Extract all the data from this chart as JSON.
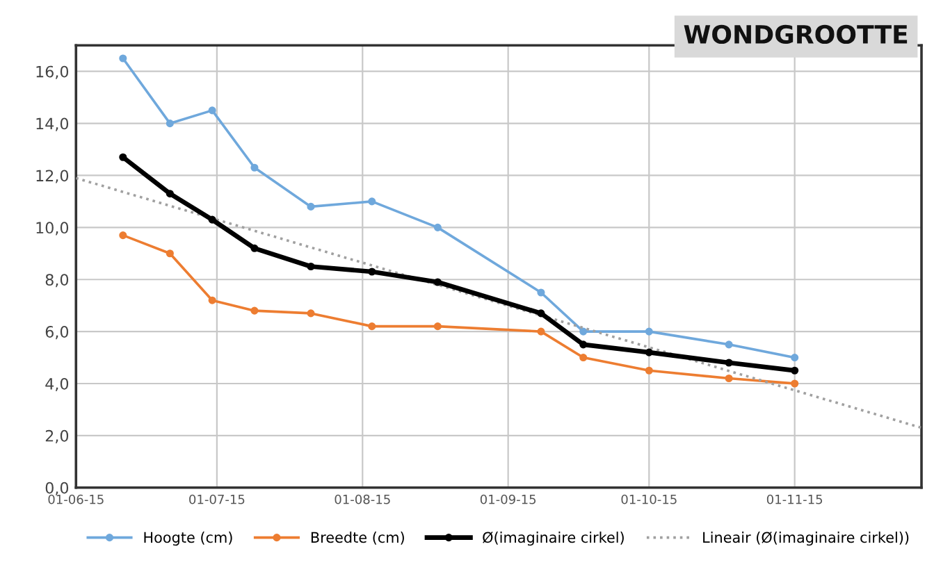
{
  "chart_data": {
    "type": "line",
    "title": "WONDGROOTTE",
    "xlim": [
      "2015-06-01",
      "2015-11-28"
    ],
    "xticks": [
      {
        "value": "2015-06-01",
        "label": "01-06-15"
      },
      {
        "value": "2015-07-01",
        "label": "01-07-15"
      },
      {
        "value": "2015-08-01",
        "label": "01-08-15"
      },
      {
        "value": "2015-09-01",
        "label": "01-09-15"
      },
      {
        "value": "2015-10-01",
        "label": "01-10-15"
      },
      {
        "value": "2015-11-01",
        "label": "01-11-15"
      }
    ],
    "ylim": [
      0,
      17
    ],
    "yticks": [
      {
        "value": 0,
        "label": "0,0"
      },
      {
        "value": 2,
        "label": "2,0"
      },
      {
        "value": 4,
        "label": "4,0"
      },
      {
        "value": 6,
        "label": "6,0"
      },
      {
        "value": 8,
        "label": "8,0"
      },
      {
        "value": 10,
        "label": "10,0"
      },
      {
        "value": 12,
        "label": "12,0"
      },
      {
        "value": 14,
        "label": "14,0"
      },
      {
        "value": 16,
        "label": "16,0"
      }
    ],
    "x": [
      "2015-06-11",
      "2015-06-21",
      "2015-06-30",
      "2015-07-09",
      "2015-07-21",
      "2015-08-03",
      "2015-08-17",
      "2015-09-08",
      "2015-09-17",
      "2015-10-01",
      "2015-10-18",
      "2015-11-01"
    ],
    "grid": true,
    "legend": "bottom",
    "marker": "circle",
    "line_style": "solid",
    "series": [
      {
        "name": "Hoogte (cm)",
        "color": "#6fa8dc",
        "values": [
          16.5,
          14.0,
          14.5,
          12.3,
          10.8,
          11.0,
          10.0,
          7.5,
          6.0,
          6.0,
          5.5,
          5.0
        ]
      },
      {
        "name": "Breedte (cm)",
        "color": "#ed7d31",
        "values": [
          9.7,
          9.0,
          7.2,
          6.8,
          6.7,
          6.2,
          6.2,
          6.0,
          5.0,
          4.5,
          4.2,
          4.0
        ]
      },
      {
        "name": "Ø(imaginaire cirkel)",
        "color": "#000000",
        "values": [
          12.7,
          11.3,
          10.3,
          9.2,
          8.5,
          8.3,
          7.9,
          6.7,
          5.5,
          5.2,
          4.8,
          4.5
        ]
      },
      {
        "name": "Lineair (Ø(imaginaire cirkel))",
        "color": "#a0a0a0",
        "type": "line",
        "line_style": "dotted",
        "marker": "none",
        "x": [
          "2015-06-01",
          "2015-11-28"
        ],
        "values": [
          11.9,
          2.3
        ]
      }
    ]
  }
}
